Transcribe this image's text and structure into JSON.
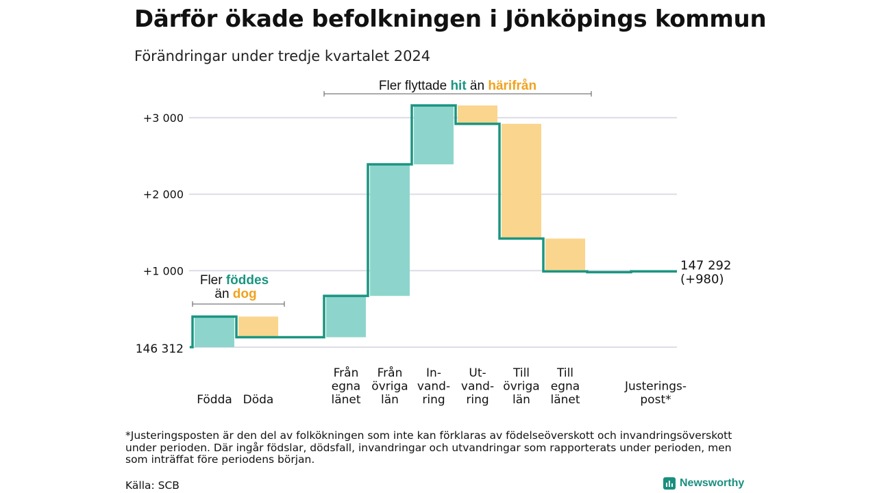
{
  "title": "Därför ökade befolkningen i Jönköpings kommun",
  "subtitle": "Förändringar under tredje kvartalet 2024",
  "footnote": "*Justeringsposten är den del av folkökningen som inte kan förklaras av födelseöverskott och invandringsöverskott under perioden. Där ingår födslar, dödsfall, invandringar och utvandringar som rapporterats under perioden, men som inträffat före periodens början.",
  "source": "Källa: SCB",
  "brand": "Newsworthy",
  "colors": {
    "increase": "#8dd5cc",
    "decrease": "#fad58e",
    "line": "#1a9581",
    "grid": "#dcdce6",
    "teal_text": "#1a9581",
    "orange_text": "#f0a21e"
  },
  "annotations": {
    "migration": {
      "prefix": "Fler flyttade ",
      "hit": "hit",
      "mid": " än ",
      "harifran": "härifrån"
    },
    "births": {
      "prefix": "Fler ",
      "foddes": "föddes",
      "mid": "än ",
      "dog": "dog"
    }
  },
  "chart_data": {
    "type": "waterfall",
    "start_label": "146 312",
    "end_label": [
      "147 292",
      "(+980)"
    ],
    "ylim": [
      0,
      3000
    ],
    "yticks": [
      {
        "value": 1000,
        "label": "+1 000"
      },
      {
        "value": 2000,
        "label": "+2 000"
      },
      {
        "value": 3000,
        "label": "+3 000"
      }
    ],
    "steps": [
      {
        "label": [
          "Födda"
        ],
        "value": 400
      },
      {
        "label": [
          "Döda"
        ],
        "value": -270
      },
      {
        "label": [
          ""
        ],
        "value": 0
      },
      {
        "label": [
          "Från",
          "egna",
          "länet"
        ],
        "value": 540
      },
      {
        "label": [
          "Från",
          "övriga",
          "län"
        ],
        "value": 1720
      },
      {
        "label": [
          "In-",
          "vand-",
          "ring"
        ],
        "value": 770
      },
      {
        "label": [
          "Ut-",
          "vand-",
          "ring"
        ],
        "value": -240
      },
      {
        "label": [
          "Till",
          "övriga",
          "län"
        ],
        "value": -1500
      },
      {
        "label": [
          "Till",
          "egna",
          "länet"
        ],
        "value": -430
      },
      {
        "label": [
          ""
        ],
        "value": -10
      },
      {
        "label": [
          "Justerings-",
          "post*"
        ],
        "value": 10
      }
    ]
  }
}
